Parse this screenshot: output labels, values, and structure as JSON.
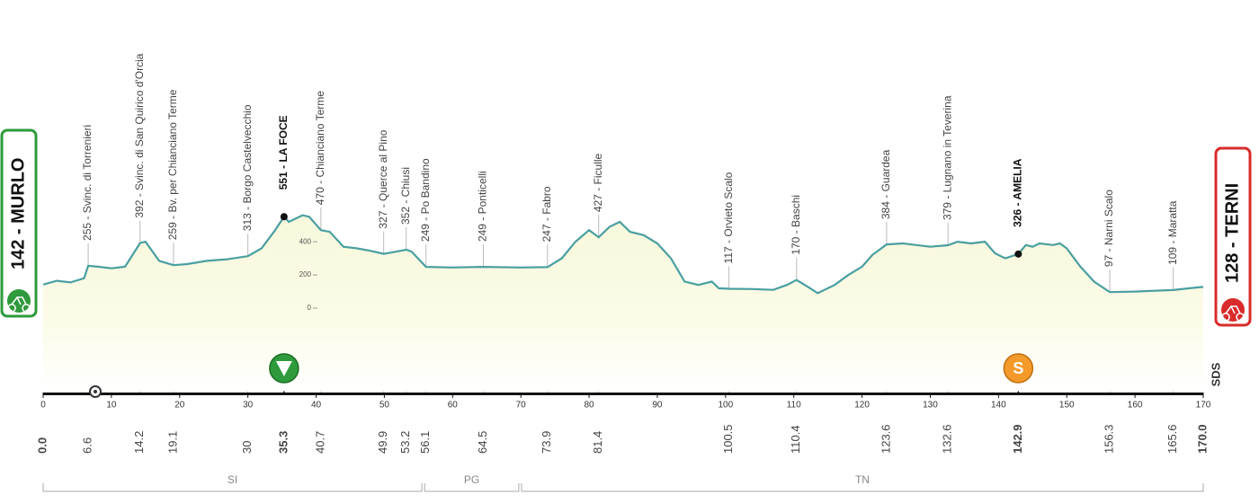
{
  "chart_data": {
    "type": "area",
    "color": "#4a9fa0",
    "xlim": [
      0,
      170
    ],
    "xticks": [
      0,
      10,
      20,
      30,
      40,
      50,
      60,
      70,
      80,
      90,
      100,
      110,
      120,
      130,
      140,
      150,
      160,
      170
    ],
    "ylim": [
      -500,
      1050
    ],
    "yticks": [
      0,
      200,
      400
    ],
    "x": [
      0,
      2,
      4,
      6,
      6.6,
      8,
      10,
      12,
      14.2,
      15,
      17,
      19.1,
      21,
      24,
      27,
      30,
      32,
      34,
      35.3,
      36,
      38,
      39,
      40.7,
      42,
      44,
      46,
      48,
      49.9,
      51,
      53.2,
      54,
      56.1,
      60,
      64.5,
      70,
      73.9,
      76,
      78,
      80,
      81.4,
      83,
      84.5,
      86,
      88,
      90,
      92,
      94,
      96,
      98,
      99,
      100.5,
      104,
      107,
      109,
      110.4,
      112,
      113.5,
      116,
      118,
      120,
      121.5,
      123.6,
      126,
      130,
      132.6,
      134,
      136,
      138,
      139.5,
      141,
      142.9,
      144,
      145,
      146,
      148,
      149,
      150,
      152,
      154,
      156.3,
      160,
      165.6,
      168,
      170
    ],
    "values": [
      142,
      165,
      155,
      180,
      255,
      250,
      240,
      250,
      392,
      400,
      285,
      259,
      265,
      285,
      295,
      313,
      360,
      470,
      551,
      520,
      560,
      550,
      470,
      460,
      370,
      360,
      345,
      327,
      335,
      352,
      340,
      249,
      245,
      249,
      245,
      247,
      300,
      400,
      470,
      427,
      490,
      520,
      460,
      440,
      390,
      300,
      160,
      140,
      160,
      120,
      117,
      115,
      110,
      140,
      170,
      130,
      90,
      140,
      200,
      250,
      320,
      384,
      390,
      370,
      379,
      400,
      390,
      400,
      330,
      300,
      326,
      380,
      370,
      390,
      380,
      390,
      360,
      250,
      160,
      97,
      100,
      109,
      120,
      128
    ],
    "start": {
      "label": "142 - MURLO",
      "km": {
        "value": 0,
        "label": "0.0"
      }
    },
    "finish": {
      "label": "128 - TERNI",
      "km": {
        "value": 170,
        "label": "170.0"
      }
    },
    "waypoints": [
      {
        "label": "255 - Svinc. di Torrenieri",
        "km": 6.6
      },
      {
        "label": "392 - Svinc. di San Quirico d'Orcia",
        "km": 14.2
      },
      {
        "label": "259 - Bv. per Chianciano Terme",
        "km": 19.1
      },
      {
        "label": "313 - Borgo Castelvecchio",
        "km": 30.0
      },
      {
        "label": "551 - LA FOCE",
        "km": 35.3,
        "bold": true,
        "icon": "triangle"
      },
      {
        "label": "470 - Chianciano Terme",
        "km": 40.7
      },
      {
        "label": "327 - Querce al Pino",
        "km": 49.9
      },
      {
        "label": "352 - Chiusi",
        "km": 53.2
      },
      {
        "label": "249 - Po Bandino",
        "km": 56.1
      },
      {
        "label": "249 - Ponticelli",
        "km": 64.5
      },
      {
        "label": "247 - Fabro",
        "km": 73.9
      },
      {
        "label": "427 - Ficulle",
        "km": 81.4
      },
      {
        "label": "117 - Orvieto Scalo",
        "km": 100.5
      },
      {
        "label": "170 - Baschi",
        "km": 110.4
      },
      {
        "label": "384 - Guardea",
        "km": 123.6
      },
      {
        "label": "379 - Lugnano in Teverina",
        "km": 132.6
      },
      {
        "label": "326 - AMELIA",
        "km": 142.9,
        "bold": true,
        "icon": "S"
      },
      {
        "label": "97 - Narni Scalo",
        "km": 156.3
      },
      {
        "label": "109 - Maratta",
        "km": 165.6
      }
    ],
    "regions": [
      {
        "name": "SI",
        "range": [
          0,
          55.5
        ]
      },
      {
        "name": "PG",
        "range": [
          55.9,
          69.7
        ]
      },
      {
        "name": "TN",
        "range": [
          70.1,
          170
        ]
      }
    ],
    "logo": "SDS"
  }
}
